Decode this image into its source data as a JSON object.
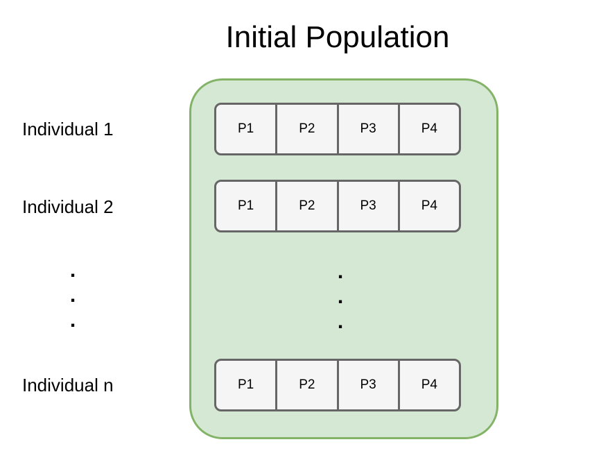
{
  "title": "Initial Population",
  "individuals": [
    {
      "label": "Individual 1",
      "params": [
        "P1",
        "P2",
        "P3",
        "P4"
      ]
    },
    {
      "label": "Individual 2",
      "params": [
        "P1",
        "P2",
        "P3",
        "P4"
      ]
    },
    {
      "label": "Individual n",
      "params": [
        "P1",
        "P2",
        "P3",
        "P4"
      ]
    }
  ],
  "ellipsis": [
    ".",
    ".",
    "."
  ],
  "colors": {
    "container_fill": "#d5e8d4",
    "container_stroke": "#82b366",
    "cell_fill": "#f5f5f5",
    "cell_stroke": "#666666"
  }
}
